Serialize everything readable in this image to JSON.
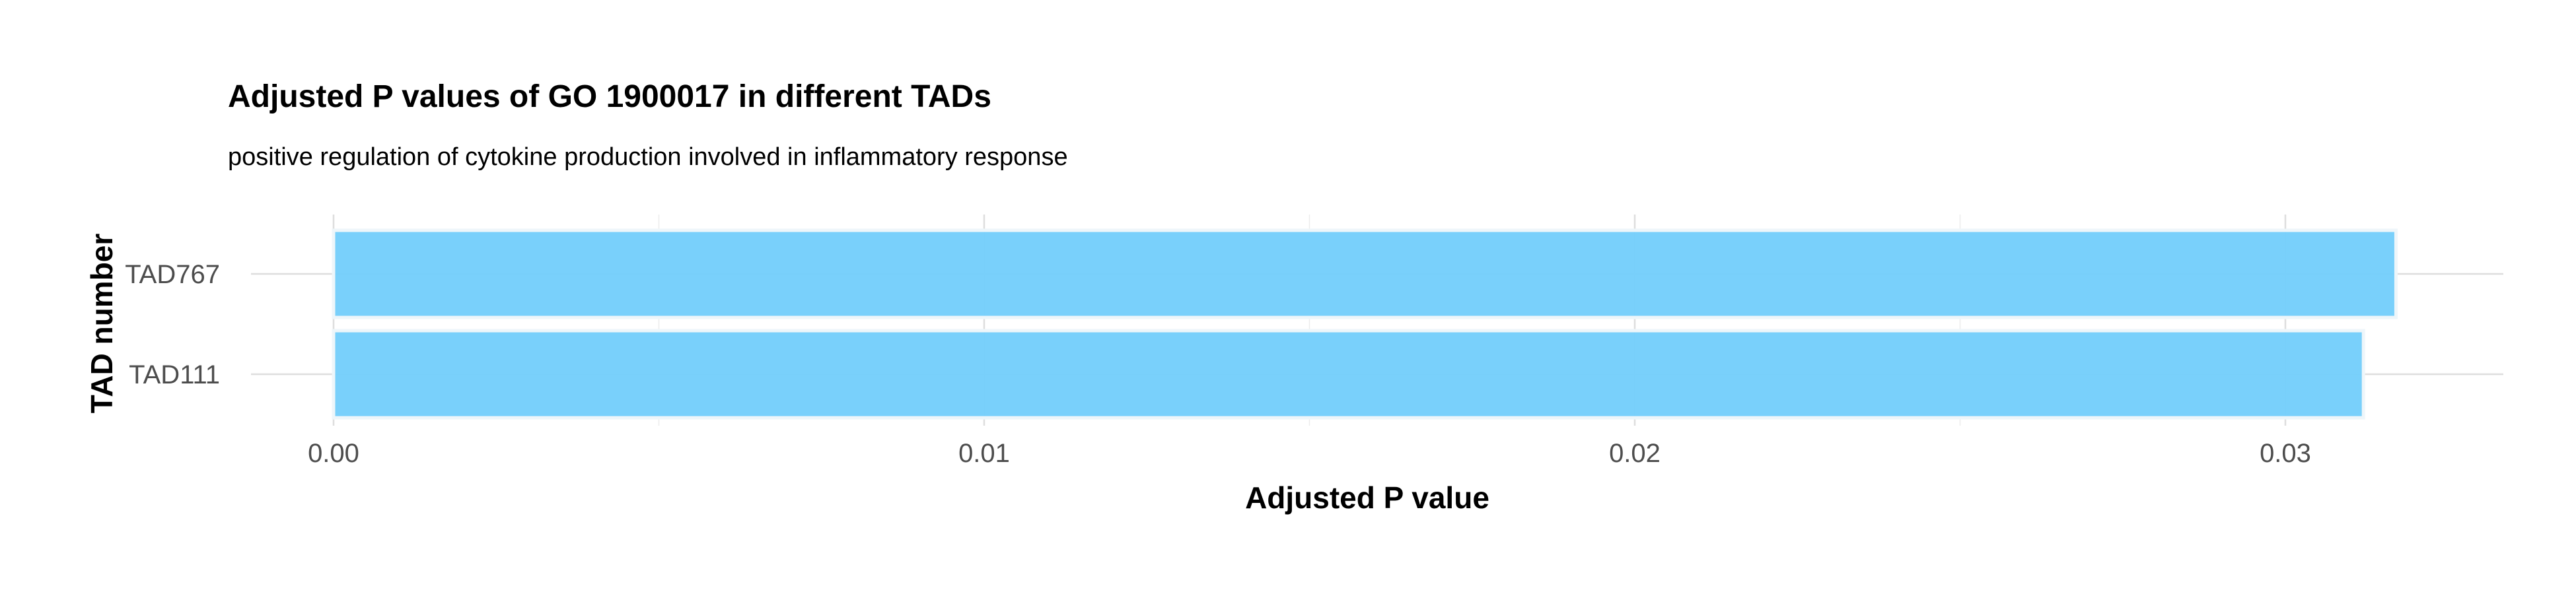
{
  "chart_data": {
    "type": "bar",
    "orientation": "horizontal",
    "title": "Adjusted P values of GO 1900017 in different TADs",
    "subtitle": "positive regulation of cytokine production involved in inflammatory response",
    "xlabel": "Adjusted P value",
    "ylabel": "TAD number",
    "categories": [
      "TAD767",
      "TAD111"
    ],
    "values": [
      0.0317,
      0.0312
    ],
    "xlim": [
      0,
      0.0334
    ],
    "x_ticks": [
      0.0,
      0.01,
      0.02,
      0.03
    ],
    "x_tick_labels": [
      "0.00",
      "0.01",
      "0.02",
      "0.03"
    ],
    "grid": true,
    "legend": "none",
    "bar_color": "#75CEFB",
    "bar_outline_color": "#EEF6FA"
  }
}
